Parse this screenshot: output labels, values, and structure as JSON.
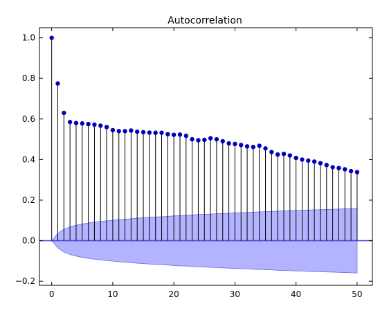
{
  "chart_data": {
    "type": "stem",
    "title": "Autocorrelation",
    "xlabel": "",
    "ylabel": "",
    "xlim": [
      -2,
      52.5
    ],
    "ylim": [
      -0.22,
      1.05
    ],
    "x_ticks": [
      0,
      10,
      20,
      30,
      40,
      50
    ],
    "y_ticks": [
      -0.2,
      0.0,
      0.2,
      0.4,
      0.6,
      0.8,
      1.0
    ],
    "x_tick_labels": [
      "0",
      "10",
      "20",
      "30",
      "40",
      "50"
    ],
    "y_tick_labels": [
      "−0.2",
      "0.0",
      "0.2",
      "0.4",
      "0.6",
      "0.8",
      "1.0"
    ],
    "grid": false,
    "colors": {
      "marker": "#0000bb",
      "stem": "#000000",
      "band_fill": "#b3b3ff",
      "band_edge": "#6c6cdc",
      "zero_line": "#4a4ad8"
    },
    "lags": [
      0,
      1,
      2,
      3,
      4,
      5,
      6,
      7,
      8,
      9,
      10,
      11,
      12,
      13,
      14,
      15,
      16,
      17,
      18,
      19,
      20,
      21,
      22,
      23,
      24,
      25,
      26,
      27,
      28,
      29,
      30,
      31,
      32,
      33,
      34,
      35,
      36,
      37,
      38,
      39,
      40,
      41,
      42,
      43,
      44,
      45,
      46,
      47,
      48,
      49,
      50
    ],
    "values": [
      1.0,
      0.775,
      0.63,
      0.585,
      0.58,
      0.578,
      0.575,
      0.572,
      0.567,
      0.56,
      0.545,
      0.54,
      0.54,
      0.543,
      0.537,
      0.535,
      0.533,
      0.532,
      0.532,
      0.525,
      0.522,
      0.523,
      0.517,
      0.5,
      0.495,
      0.497,
      0.505,
      0.5,
      0.49,
      0.48,
      0.477,
      0.472,
      0.465,
      0.462,
      0.468,
      0.455,
      0.437,
      0.425,
      0.428,
      0.42,
      0.408,
      0.4,
      0.395,
      0.39,
      0.382,
      0.373,
      0.362,
      0.358,
      0.352,
      0.343,
      0.338
    ],
    "confidence_upper": [
      0.0,
      0.035,
      0.056,
      0.068,
      0.076,
      0.082,
      0.087,
      0.091,
      0.095,
      0.098,
      0.101,
      0.104,
      0.106,
      0.108,
      0.111,
      0.113,
      0.115,
      0.117,
      0.118,
      0.12,
      0.122,
      0.124,
      0.125,
      0.127,
      0.129,
      0.13,
      0.131,
      0.133,
      0.134,
      0.136,
      0.137,
      0.138,
      0.139,
      0.141,
      0.142,
      0.143,
      0.144,
      0.146,
      0.147,
      0.148,
      0.149,
      0.15,
      0.151,
      0.152,
      0.153,
      0.154,
      0.155,
      0.156,
      0.157,
      0.158,
      0.16
    ]
  }
}
